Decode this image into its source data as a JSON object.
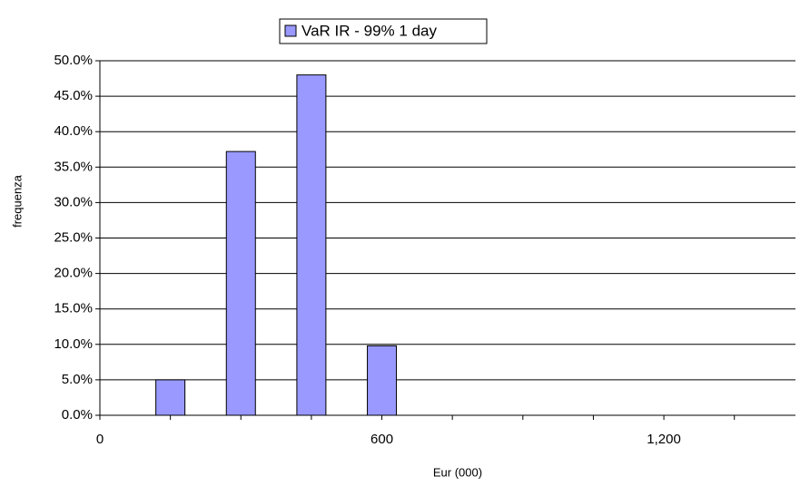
{
  "chart_data": {
    "type": "bar",
    "legend": "VaR IR - 99% 1 day",
    "x_label": "Eur (000)",
    "y_label": "frequenza",
    "x": [
      150,
      300,
      450,
      600
    ],
    "values": [
      5.0,
      37.2,
      48.0,
      9.8
    ],
    "color": "#9999ff",
    "xlim": [
      0,
      1480
    ],
    "xticks": [
      0,
      600,
      {
        "value": 1200,
        "label": "1,200"
      }
    ],
    "xminorticks": [
      150,
      300,
      450,
      750,
      900,
      1050,
      1350
    ],
    "ylim": [
      0,
      50
    ],
    "yticks": [
      {
        "value": 0,
        "label": "0.0%"
      },
      {
        "value": 5,
        "label": "5.0%"
      },
      {
        "value": 10,
        "label": "10.0%"
      },
      {
        "value": 15,
        "label": "15.0%"
      },
      {
        "value": 20,
        "label": "20.0%"
      },
      {
        "value": 25,
        "label": "25.0%"
      },
      {
        "value": 30,
        "label": "30.0%"
      },
      {
        "value": 35,
        "label": "35.0%"
      },
      {
        "value": 40,
        "label": "40.0%"
      },
      {
        "value": 45,
        "label": "45.0%"
      },
      {
        "value": 50,
        "label": "50.0%"
      }
    ],
    "grid": true,
    "legend_position": "top"
  }
}
